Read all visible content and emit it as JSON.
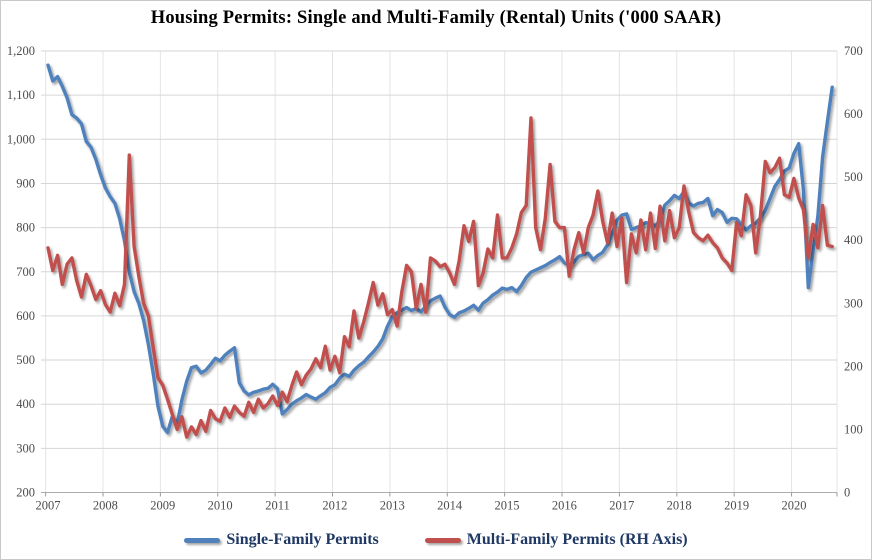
{
  "title": "Housing Permits: Single and Multi-Family  (Rental) Units  ('000 SAAR)",
  "legend": {
    "items": [
      {
        "label": "Single-Family Permits",
        "color": "#4F81BD"
      },
      {
        "label": "Multi-Family Permits (RH Axis)",
        "color": "#C0504D"
      }
    ]
  },
  "chart_data": {
    "type": "line",
    "title": "Housing Permits: Single and Multi-Family (Rental) Units ('000 SAAR)",
    "frequency": "monthly",
    "start": "2007-01",
    "end": "2020-09",
    "grid": true,
    "legend_position": "bottom",
    "x_axis": {
      "labels": [
        "2007",
        "2008",
        "2009",
        "2010",
        "2011",
        "2012",
        "2013",
        "2014",
        "2015",
        "2016",
        "2017",
        "2018",
        "2019",
        "2020"
      ]
    },
    "left_axis": {
      "min": 200,
      "max": 1200,
      "step": 100,
      "labels": [
        "1,200",
        "1,100",
        "1,000",
        "900",
        "800",
        "700",
        "600",
        "500",
        "400",
        "300",
        "200"
      ],
      "values": [
        1200,
        1100,
        1000,
        900,
        800,
        700,
        600,
        500,
        400,
        300,
        200
      ]
    },
    "right_axis": {
      "min": 0,
      "max": 700,
      "step": 100,
      "labels": [
        "700",
        "600",
        "500",
        "400",
        "300",
        "200",
        "100",
        "0"
      ],
      "values": [
        700,
        600,
        500,
        400,
        300,
        200,
        100,
        0
      ]
    },
    "series": [
      {
        "name": "Single-Family Permits",
        "axis": "left",
        "color": "#4F81BD",
        "values": [
          1168,
          1132,
          1142,
          1120,
          1094,
          1056,
          1048,
          1035,
          995,
          982,
          955,
          920,
          890,
          870,
          855,
          820,
          770,
          700,
          655,
          628,
          590,
          535,
          470,
          395,
          350,
          336,
          372,
          355,
          410,
          452,
          483,
          486,
          471,
          477,
          490,
          504,
          498,
          511,
          520,
          528,
          449,
          430,
          421,
          427,
          430,
          434,
          436,
          445,
          435,
          378,
          388,
          400,
          408,
          414,
          422,
          416,
          411,
          419,
          426,
          438,
          444,
          459,
          468,
          463,
          477,
          487,
          495,
          507,
          518,
          531,
          548,
          577,
          598,
          607,
          613,
          619,
          612,
          617,
          609,
          622,
          634,
          640,
          645,
          620,
          603,
          597,
          607,
          611,
          617,
          624,
          613,
          629,
          637,
          647,
          654,
          663,
          660,
          664,
          655,
          669,
          687,
          699,
          704,
          709,
          714,
          721,
          727,
          734,
          720,
          714,
          722,
          735,
          739,
          742,
          727,
          737,
          744,
          761,
          787,
          817,
          828,
          831,
          796,
          800,
          804,
          811,
          809,
          804,
          817,
          851,
          861,
          873,
          866,
          882,
          856,
          849,
          855,
          857,
          866,
          827,
          841,
          834,
          812,
          821,
          820,
          806,
          795,
          804,
          810,
          822,
          839,
          866,
          893,
          909,
          928,
          935,
          968,
          990,
          884,
          664,
          748,
          827,
          960,
          1040,
          1118
        ]
      },
      {
        "name": "Multi-Family Permits (RH Axis)",
        "axis": "right",
        "color": "#C0504D",
        "values": [
          388,
          352,
          376,
          330,
          362,
          372,
          336,
          310,
          346,
          328,
          306,
          320,
          298,
          286,
          316,
          296,
          330,
          535,
          390,
          342,
          300,
          280,
          230,
          182,
          170,
          148,
          124,
          100,
          120,
          88,
          104,
          92,
          114,
          97,
          130,
          117,
          113,
          134,
          119,
          137,
          127,
          121,
          143,
          127,
          148,
          134,
          141,
          153,
          138,
          159,
          144,
          170,
          191,
          171,
          186,
          196,
          212,
          198,
          232,
          194,
          216,
          190,
          247,
          231,
          288,
          245,
          270,
          300,
          333,
          297,
          315,
          282,
          290,
          264,
          318,
          360,
          350,
          292,
          330,
          286,
          372,
          367,
          358,
          362,
          348,
          330,
          368,
          423,
          398,
          430,
          328,
          348,
          386,
          372,
          440,
          372,
          372,
          388,
          410,
          444,
          455,
          594,
          420,
          385,
          435,
          520,
          430,
          420,
          420,
          343,
          385,
          412,
          380,
          420,
          440,
          478,
          430,
          396,
          443,
          390,
          435,
          333,
          410,
          380,
          432,
          385,
          443,
          387,
          454,
          399,
          447,
          404,
          420,
          486,
          445,
          412,
          404,
          399,
          408,
          396,
          388,
          372,
          364,
          352,
          428,
          407,
          472,
          455,
          380,
          440,
          525,
          507,
          515,
          530,
          472,
          468,
          498,
          467,
          448,
          372,
          425,
          388,
          455,
          392,
          390
        ]
      }
    ]
  }
}
